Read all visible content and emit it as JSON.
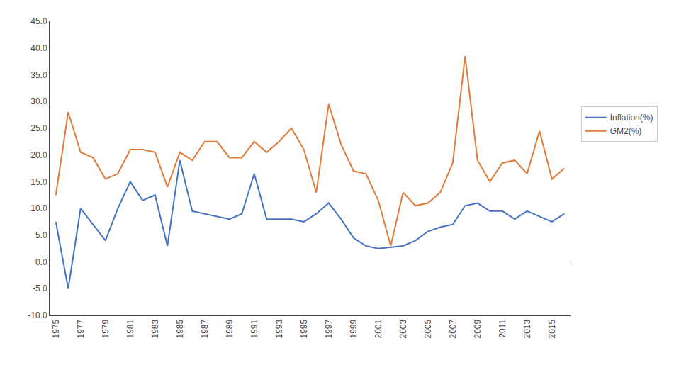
{
  "chart_data": {
    "type": "line",
    "x": [
      1975,
      1976,
      1977,
      1978,
      1979,
      1980,
      1981,
      1982,
      1983,
      1984,
      1985,
      1986,
      1987,
      1988,
      1989,
      1990,
      1991,
      1992,
      1993,
      1994,
      1995,
      1996,
      1997,
      1998,
      1999,
      2000,
      2001,
      2002,
      2003,
      2004,
      2005,
      2006,
      2007,
      2008,
      2009,
      2010,
      2011,
      2012,
      2013,
      2014,
      2015,
      2016
    ],
    "series": [
      {
        "name": "Inflation(%)",
        "color": "#4472c4",
        "values": [
          7.5,
          -5.0,
          10.0,
          7.0,
          4.0,
          10.0,
          15.0,
          11.5,
          12.5,
          3.0,
          19.0,
          9.5,
          9.0,
          8.5,
          8.0,
          9.0,
          16.5,
          8.0,
          8.0,
          8.0,
          7.5,
          9.0,
          11.0,
          8.0,
          4.5,
          3.0,
          2.5,
          2.8,
          3.0,
          4.0,
          5.7,
          6.5,
          7.0,
          10.5,
          11.0,
          9.5,
          9.5,
          8.0,
          9.5,
          8.5,
          7.5,
          9.0
        ]
      },
      {
        "name": "GM2(%)",
        "color": "#e07b39",
        "values": [
          12.5,
          28.0,
          20.5,
          19.5,
          15.5,
          16.5,
          21.0,
          21.0,
          20.5,
          14.0,
          20.5,
          19.0,
          22.5,
          22.5,
          19.5,
          19.5,
          22.5,
          20.5,
          22.5,
          25.0,
          21.0,
          13.0,
          29.5,
          22.0,
          17.0,
          16.5,
          11.5,
          3.0,
          13.0,
          10.5,
          11.0,
          13.0,
          18.5,
          38.5,
          19.0,
          15.0,
          18.5,
          19.0,
          16.5,
          24.5,
          15.5,
          17.5
        ]
      }
    ],
    "xlim": [
      1974.5,
      2016.5
    ],
    "xticks": [
      1975,
      1977,
      1979,
      1981,
      1983,
      1985,
      1987,
      1989,
      1991,
      1993,
      1995,
      1997,
      1999,
      2001,
      2003,
      2005,
      2007,
      2009,
      2011,
      2013,
      2015
    ],
    "ylim": [
      -10.0,
      45.0
    ],
    "yticks": [
      {
        "value": -10.0,
        "label": "-10.0"
      },
      {
        "value": -5.0,
        "label": "-5.0"
      },
      {
        "value": 0.0,
        "label": "0.0"
      },
      {
        "value": 5.0,
        "label": "5.0"
      },
      {
        "value": 10.0,
        "label": "10.0"
      },
      {
        "value": 15.0,
        "label": "15.0"
      },
      {
        "value": 20.0,
        "label": "20.0"
      },
      {
        "value": 25.0,
        "label": "25.0"
      },
      {
        "value": 30.0,
        "label": "30.0"
      },
      {
        "value": 35.0,
        "label": "35.0"
      },
      {
        "value": 40.0,
        "label": "40.0"
      },
      {
        "value": 45.0,
        "label": "45.0"
      }
    ],
    "grid": false,
    "legend": "right"
  }
}
